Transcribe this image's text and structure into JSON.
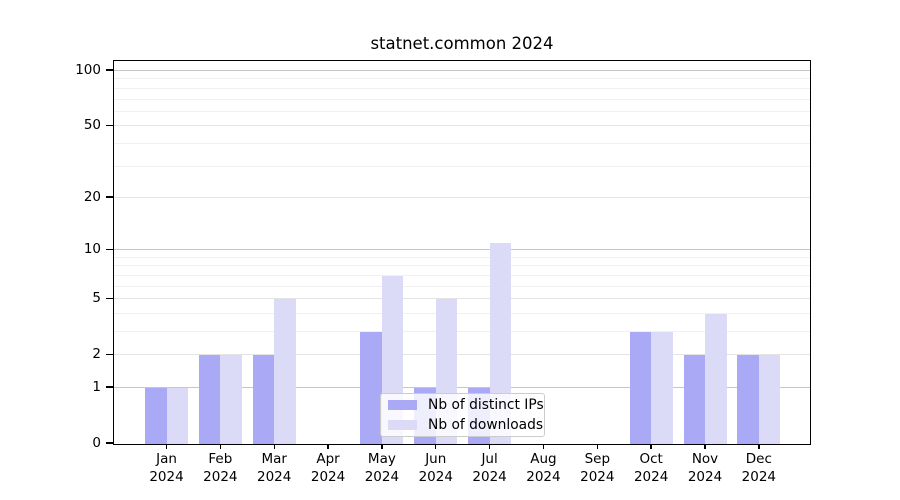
{
  "chart_data": {
    "type": "bar",
    "title": "statnet.common 2024",
    "months": [
      "Jan",
      "Feb",
      "Mar",
      "Apr",
      "May",
      "Jun",
      "Jul",
      "Aug",
      "Sep",
      "Oct",
      "Nov",
      "Dec"
    ],
    "year": "2024",
    "series": [
      {
        "name": "Nb of distinct IPs",
        "color": "#a9a9f5",
        "values": [
          1,
          2,
          2,
          0,
          3,
          1,
          1,
          0,
          0,
          3,
          2,
          2
        ]
      },
      {
        "name": "Nb of downloads",
        "color": "#dbdbf8",
        "values": [
          1,
          2,
          5,
          0,
          7,
          5,
          11,
          0,
          0,
          3,
          4,
          2
        ]
      }
    ],
    "yticks": [
      0,
      1,
      2,
      5,
      10,
      20,
      50,
      100
    ],
    "strong_gridlines": [
      1,
      10,
      100
    ],
    "soft_gridlines": [
      2,
      5,
      20,
      50
    ],
    "minor_gridlines": [
      3,
      4,
      6,
      7,
      8,
      9,
      30,
      40,
      60,
      70,
      80,
      90
    ],
    "scale": "log1p",
    "ylim": [
      0,
      112
    ],
    "grid": true,
    "legend_position": "lower center",
    "colors": {
      "strong_grid": "#c6c6c6",
      "soft_grid": "#e4e4e4",
      "minor_grid": "#f0f0f0",
      "axis": "#000000",
      "background": "#ffffff"
    }
  }
}
